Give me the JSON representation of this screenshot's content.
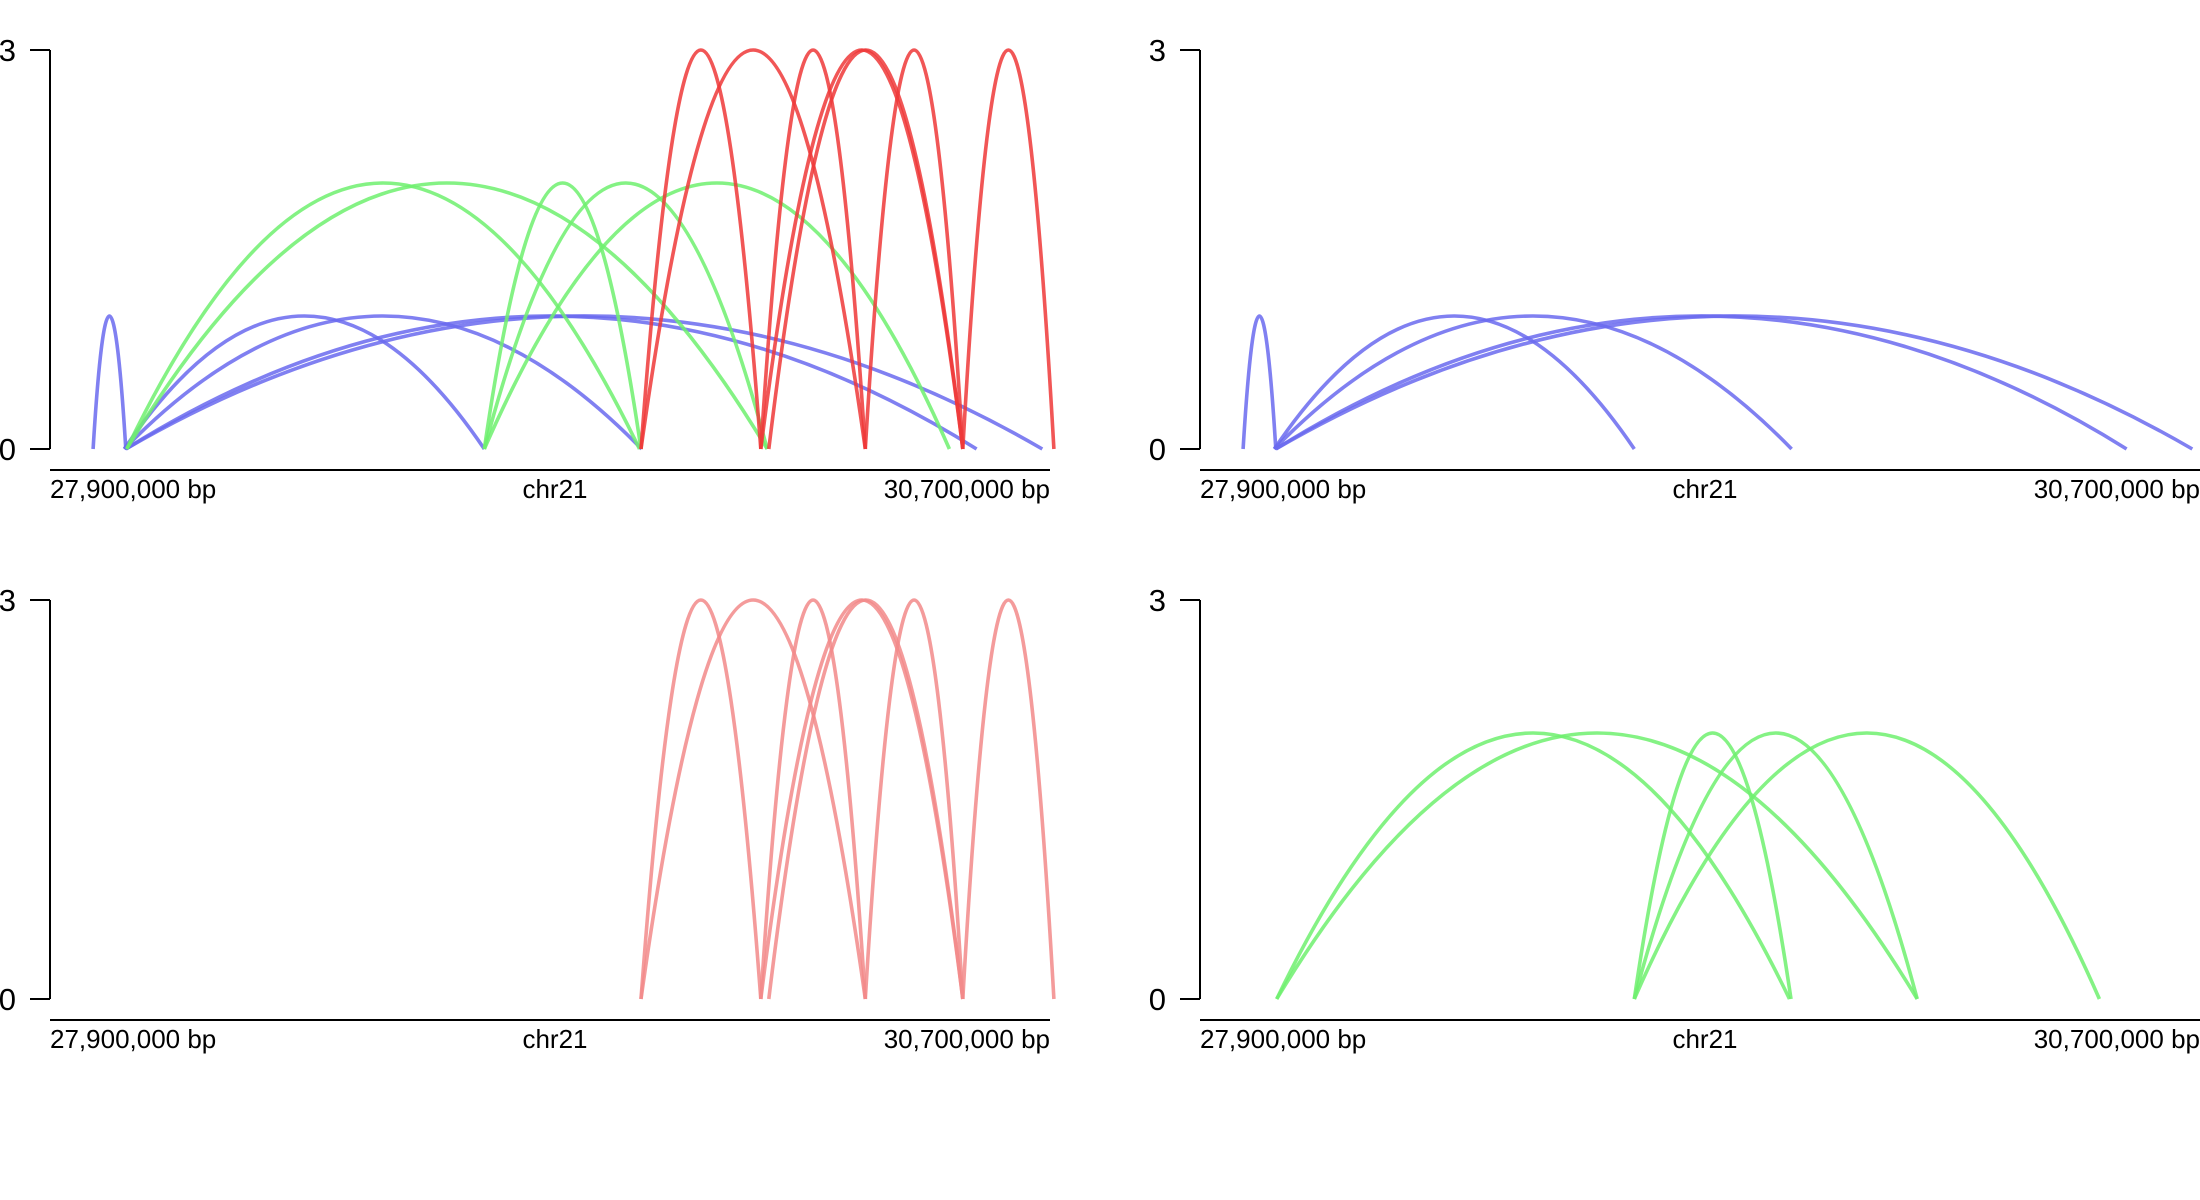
{
  "chart_data": [
    {
      "type": "arc",
      "chromosome": "chr21",
      "x_axis_labels": {
        "start": "27,900,000 bp",
        "middle": "chr21",
        "end": "30,700,000 bp"
      },
      "ylim": [
        0,
        3
      ],
      "y_ticks": [
        "0",
        "3"
      ],
      "series": [
        {
          "color": "#6a6aef",
          "arcs": [
            {
              "start": 27.867,
              "end": 27.974,
              "height": 1
            },
            {
              "start": 27.969,
              "end": 29.147,
              "height": 1
            },
            {
              "start": 27.969,
              "end": 29.662,
              "height": 1
            },
            {
              "start": 27.974,
              "end": 30.758,
              "height": 1
            },
            {
              "start": 27.974,
              "end": 30.973,
              "height": 1
            }
          ]
        },
        {
          "color": "#6ff06f",
          "arcs": [
            {
              "start": 27.977,
              "end": 29.655,
              "height": 2
            },
            {
              "start": 27.977,
              "end": 30.073,
              "height": 2
            },
            {
              "start": 29.147,
              "end": 29.66,
              "height": 2
            },
            {
              "start": 29.147,
              "end": 30.073,
              "height": 2
            },
            {
              "start": 29.147,
              "end": 30.669,
              "height": 2
            }
          ]
        },
        {
          "color": "#ee3838",
          "arcs": [
            {
              "start": 29.66,
              "end": 30.052,
              "height": 3
            },
            {
              "start": 29.66,
              "end": 30.394,
              "height": 3
            },
            {
              "start": 30.052,
              "end": 30.394,
              "height": 3
            },
            {
              "start": 30.052,
              "end": 30.713,
              "height": 3
            },
            {
              "start": 30.394,
              "end": 30.713,
              "height": 3
            },
            {
              "start": 30.713,
              "end": 31.011,
              "height": 3
            },
            {
              "start": 30.078,
              "end": 30.713,
              "height": 3
            }
          ]
        }
      ]
    },
    {
      "type": "arc",
      "chromosome": "chr21",
      "x_axis_labels": {
        "start": "27,900,000 bp",
        "middle": "chr21",
        "end": "30,700,000 bp"
      },
      "ylim": [
        0,
        3
      ],
      "y_ticks": [
        "0",
        "3"
      ],
      "series": [
        {
          "color": "#6a6aef",
          "arcs": [
            {
              "start": 27.867,
              "end": 27.974,
              "height": 1
            },
            {
              "start": 27.969,
              "end": 29.147,
              "height": 1
            },
            {
              "start": 27.969,
              "end": 29.662,
              "height": 1
            },
            {
              "start": 27.974,
              "end": 30.758,
              "height": 1
            },
            {
              "start": 27.974,
              "end": 30.973,
              "height": 1
            }
          ]
        }
      ]
    },
    {
      "type": "arc",
      "chromosome": "chr21",
      "x_axis_labels": {
        "start": "27,900,000 bp",
        "middle": "chr21",
        "end": "30,700,000 bp"
      },
      "ylim": [
        0,
        3
      ],
      "y_ticks": [
        "0",
        "3"
      ],
      "series": [
        {
          "color": "#f28a8a",
          "arcs": [
            {
              "start": 29.66,
              "end": 30.052,
              "height": 3
            },
            {
              "start": 29.66,
              "end": 30.394,
              "height": 3
            },
            {
              "start": 30.052,
              "end": 30.394,
              "height": 3
            },
            {
              "start": 30.052,
              "end": 30.713,
              "height": 3
            },
            {
              "start": 30.394,
              "end": 30.713,
              "height": 3
            },
            {
              "start": 30.713,
              "end": 31.011,
              "height": 3
            },
            {
              "start": 30.078,
              "end": 30.713,
              "height": 3
            }
          ]
        }
      ]
    },
    {
      "type": "arc",
      "chromosome": "chr21",
      "x_axis_labels": {
        "start": "27,900,000 bp",
        "middle": "chr21",
        "end": "30,700,000 bp"
      },
      "ylim": [
        0,
        3
      ],
      "y_ticks": [
        "0",
        "3"
      ],
      "series": [
        {
          "color": "#6ff06f",
          "arcs": [
            {
              "start": 27.977,
              "end": 29.655,
              "height": 2
            },
            {
              "start": 27.977,
              "end": 30.073,
              "height": 2
            },
            {
              "start": 29.147,
              "end": 29.66,
              "height": 2
            },
            {
              "start": 29.147,
              "end": 30.073,
              "height": 2
            },
            {
              "start": 29.147,
              "end": 30.669,
              "height": 2
            }
          ]
        }
      ]
    }
  ]
}
